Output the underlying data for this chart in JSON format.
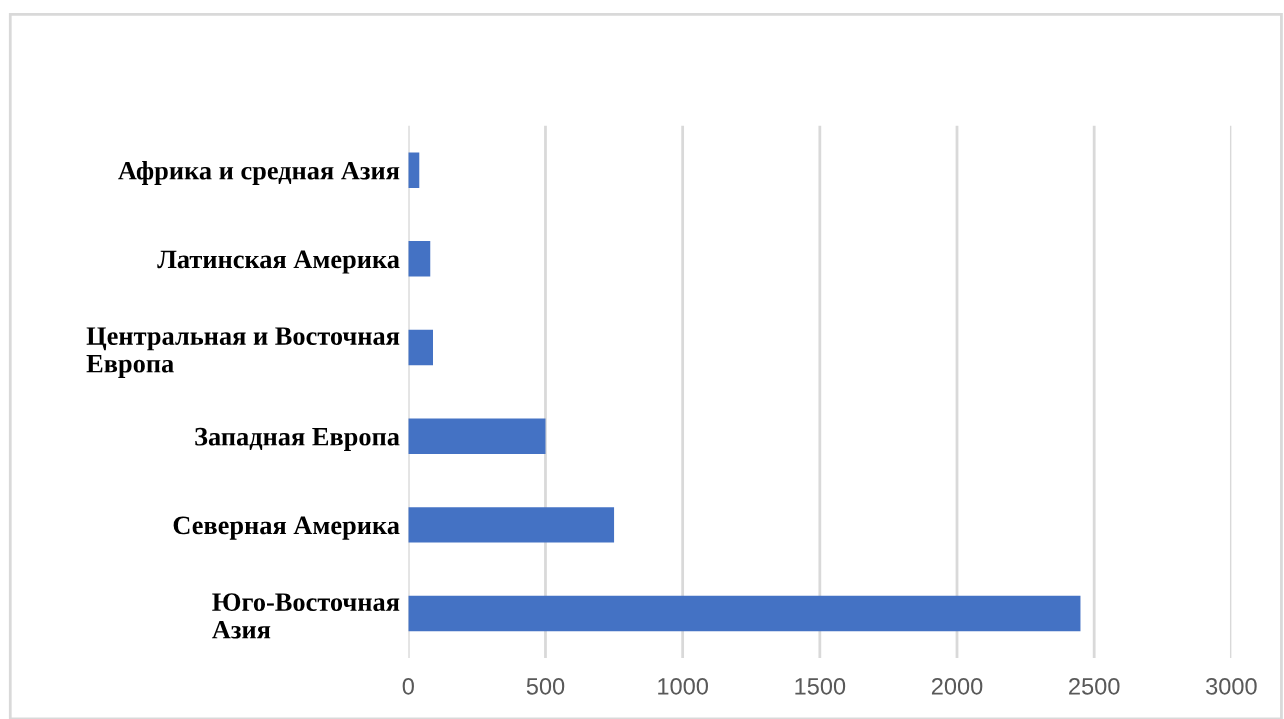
{
  "chart_data": {
    "type": "bar",
    "orientation": "horizontal",
    "categories": [
      "Африка и средная Азия",
      "Латинская Америка",
      "Центральная и Восточная\nЕвропа",
      "Западная Европа",
      "Северная Америка",
      "Юго-Восточная\nАзия"
    ],
    "values": [
      40,
      80,
      90,
      500,
      750,
      2450
    ],
    "color": "#4472c4",
    "xlim": [
      0,
      3000
    ],
    "xticks": [
      0,
      500,
      1000,
      1500,
      2000,
      2500,
      3000
    ],
    "grid": "x"
  }
}
